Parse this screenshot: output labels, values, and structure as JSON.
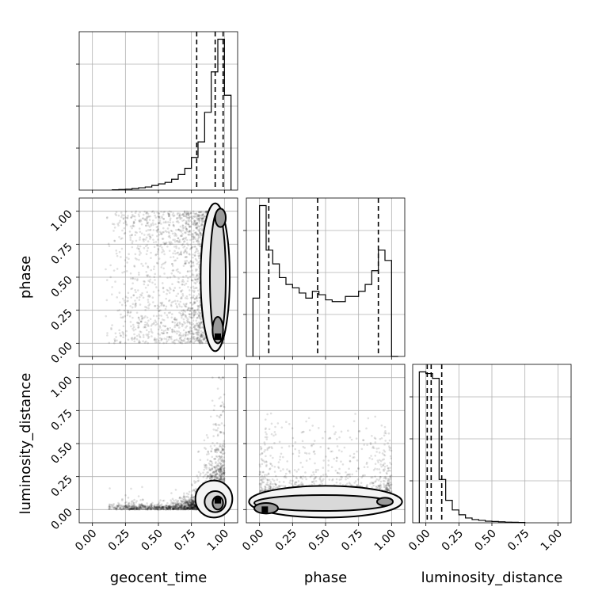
{
  "chart_data": {
    "type": "corner",
    "parameters": [
      "geocent_time",
      "phase",
      "luminosity_distance"
    ],
    "ticks": [
      "0.00",
      "0.25",
      "0.50",
      "0.75",
      "1.00"
    ],
    "xlim": [
      -0.1,
      1.1
    ],
    "ylim": [
      -0.1,
      1.1
    ],
    "grid": true,
    "histograms": [
      {
        "parameter": "geocent_time",
        "bin_edges": [
          0.15,
          0.2,
          0.25,
          0.3,
          0.35,
          0.4,
          0.45,
          0.5,
          0.55,
          0.6,
          0.65,
          0.7,
          0.75,
          0.8,
          0.85,
          0.9,
          0.95,
          1.0,
          1.05
        ],
        "counts": [
          0.002,
          0.004,
          0.006,
          0.01,
          0.015,
          0.02,
          0.03,
          0.04,
          0.05,
          0.07,
          0.1,
          0.14,
          0.21,
          0.31,
          0.5,
          0.76,
          0.97,
          0.61
        ],
        "quantiles": [
          0.79,
          0.93,
          0.99
        ]
      },
      {
        "parameter": "phase",
        "bin_edges": [
          -0.05,
          0.0,
          0.05,
          0.1,
          0.15,
          0.2,
          0.25,
          0.3,
          0.35,
          0.4,
          0.45,
          0.5,
          0.55,
          0.6,
          0.65,
          0.7,
          0.75,
          0.8,
          0.85,
          0.9,
          0.95,
          1.0,
          1.05
        ],
        "counts": [
          0.34,
          0.88,
          0.62,
          0.54,
          0.46,
          0.42,
          0.4,
          0.37,
          0.34,
          0.38,
          0.36,
          0.33,
          0.32,
          0.32,
          0.35,
          0.35,
          0.38,
          0.42,
          0.5,
          0.62,
          0.56,
          0.0
        ],
        "quantiles": [
          0.07,
          0.44,
          0.9
        ]
      },
      {
        "parameter": "luminosity_distance",
        "bin_edges": [
          -0.05,
          0.0,
          0.05,
          0.1,
          0.15,
          0.2,
          0.25,
          0.3,
          0.35,
          0.4,
          0.45,
          0.5,
          0.55,
          0.6,
          0.65,
          0.7,
          0.75
        ],
        "counts": [
          0.94,
          0.93,
          0.9,
          0.27,
          0.14,
          0.08,
          0.05,
          0.03,
          0.02,
          0.015,
          0.01,
          0.008,
          0.006,
          0.004,
          0.003,
          0.002
        ],
        "quantiles": [
          0.01,
          0.04,
          0.12
        ]
      }
    ],
    "joint": [
      {
        "x": "geocent_time",
        "y": "phase",
        "peak": [
          0.95,
          0.05
        ],
        "secondary_peak": [
          0.97,
          0.97
        ]
      },
      {
        "x": "geocent_time",
        "y": "luminosity_distance",
        "peak": [
          0.95,
          0.05
        ]
      },
      {
        "x": "phase",
        "y": "luminosity_distance",
        "peak": [
          0.03,
          0.0
        ],
        "secondary_peak": [
          0.97,
          0.06
        ]
      }
    ]
  }
}
